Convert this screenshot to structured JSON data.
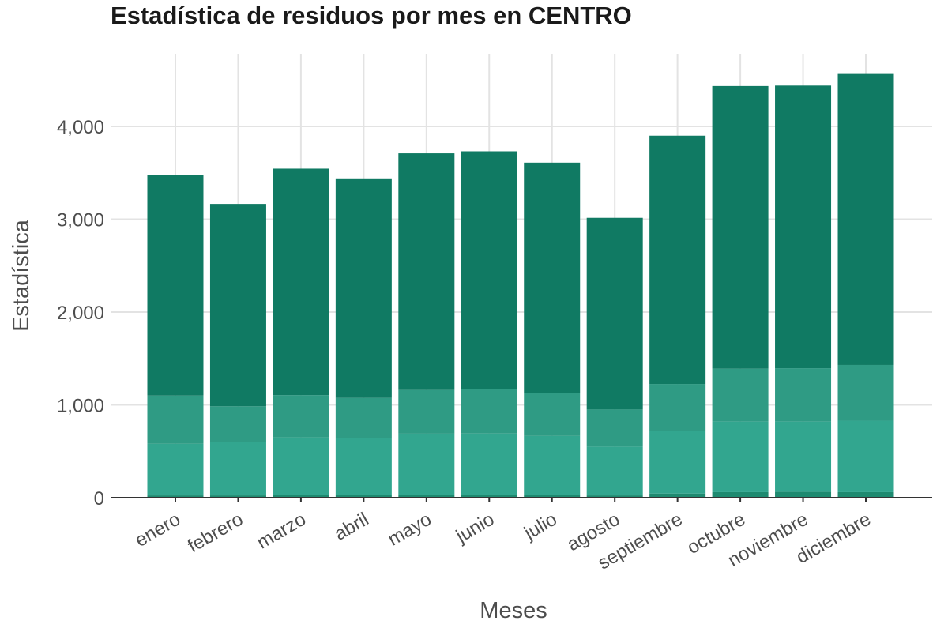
{
  "chart_data": {
    "type": "bar",
    "stacked": true,
    "title": "Estadística de residuos por mes en CENTRO",
    "xlabel": "Meses",
    "ylabel": "Estadística",
    "categories": [
      "enero",
      "febrero",
      "marzo",
      "abril",
      "mayo",
      "junio",
      "julio",
      "agosto",
      "septiembre",
      "octubre",
      "noviembre",
      "diciembre"
    ],
    "yticks": [
      0,
      1000,
      2000,
      3000,
      4000
    ],
    "ytick_labels": [
      "0",
      "1,000",
      "2,000",
      "3,000",
      "4,000"
    ],
    "ylim": [
      0,
      4800
    ],
    "grid": true,
    "legend": "none",
    "series": [
      {
        "values": [
          25,
          25,
          30,
          28,
          30,
          32,
          30,
          25,
          45,
          60,
          65,
          60
        ],
        "color": "#1e8a70"
      },
      {
        "values": [
          555,
          575,
          620,
          612,
          660,
          660,
          635,
          525,
          675,
          760,
          755,
          770
        ],
        "color": "#32a68f"
      },
      {
        "values": [
          520,
          385,
          455,
          435,
          470,
          475,
          465,
          400,
          505,
          570,
          575,
          600
        ],
        "color": "#2f9b84"
      },
      {
        "values": [
          2380,
          2180,
          2440,
          2365,
          2550,
          2565,
          2480,
          2065,
          2675,
          3045,
          3045,
          3135
        ],
        "color": "#107a63"
      }
    ]
  }
}
